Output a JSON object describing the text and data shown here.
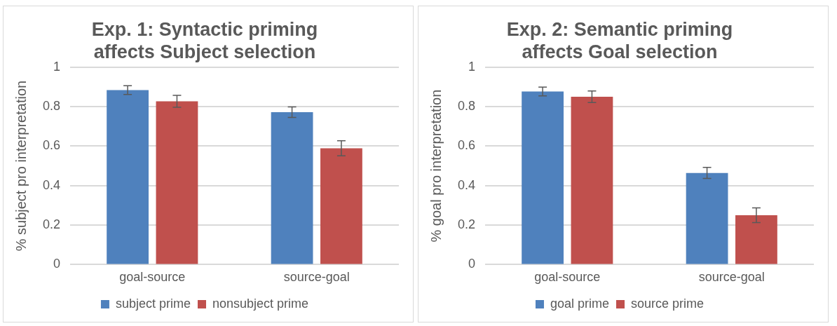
{
  "chart_data": [
    {
      "type": "bar",
      "title": "Exp. 1: Syntactic priming affects Subject selection",
      "ylabel": "% subject pro interpretation",
      "categories": [
        "goal-source",
        "source-goal"
      ],
      "series": [
        {
          "name": "subject prime",
          "color": "#4f81bd",
          "values": [
            0.884,
            0.772
          ],
          "errors": [
            0.022,
            0.027
          ]
        },
        {
          "name": "nonsubject prime",
          "color": "#c0504d",
          "values": [
            0.827,
            0.589
          ],
          "errors": [
            0.03,
            0.038
          ]
        }
      ],
      "ylim": [
        0,
        1
      ],
      "yticks": [
        0,
        0.2,
        0.4,
        0.6,
        0.8,
        1
      ],
      "grid": "y",
      "legend": "bottom"
    },
    {
      "type": "bar",
      "title": "Exp. 2: Semantic priming affects Goal selection",
      "ylabel": "% goal pro interpretation",
      "categories": [
        "goal-source",
        "source-goal"
      ],
      "series": [
        {
          "name": "goal prime",
          "color": "#4f81bd",
          "values": [
            0.877,
            0.464
          ],
          "errors": [
            0.022,
            0.028
          ]
        },
        {
          "name": "source prime",
          "color": "#c0504d",
          "values": [
            0.85,
            0.25
          ],
          "errors": [
            0.029,
            0.037
          ]
        }
      ],
      "ylim": [
        0,
        1
      ],
      "yticks": [
        0,
        0.2,
        0.4,
        0.6,
        0.8,
        1
      ],
      "grid": "y",
      "legend": "bottom"
    }
  ]
}
